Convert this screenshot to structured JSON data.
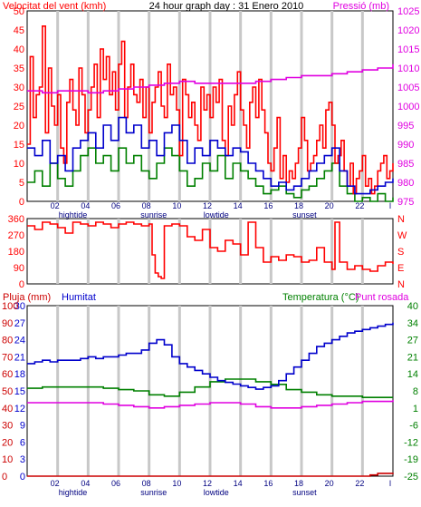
{
  "colors": {
    "red": "#ff0000",
    "dark_red": "#cc0000",
    "blue": "#0000cc",
    "green": "#008000",
    "magenta": "#e000e0",
    "grid": "#c8c8c8",
    "tick_text": "#000080"
  },
  "x_axis": {
    "hour_labels": [
      "02",
      "04",
      "06",
      "08",
      "10",
      "12",
      "14",
      "16",
      "18",
      "20",
      "22",
      "l"
    ],
    "events": [
      {
        "label": "hightide",
        "hour": 3.0
      },
      {
        "label": "sunrise",
        "hour": 8.3
      },
      {
        "label": "lowtide",
        "hour": 12.4
      },
      {
        "label": "sunset",
        "hour": 18.2
      },
      {
        "label": "hightide",
        "hour": 3.0
      },
      {
        "label": "sunrise",
        "hour": 8.3
      },
      {
        "label": "lowtide",
        "hour": 12.4
      },
      {
        "label": "sunset",
        "hour": 18.2
      }
    ],
    "xlim": [
      0,
      24
    ]
  },
  "chart_data": [
    {
      "type": "line",
      "title": "24 hour graph day : 31 Enero 2010",
      "left_axis": {
        "label": "Velocitat del vent (kmh)",
        "ticks": [
          "0",
          "5",
          "10",
          "15",
          "20",
          "25",
          "30",
          "35",
          "40",
          "45",
          "50"
        ],
        "ylim": [
          0,
          50
        ]
      },
      "right_axis": {
        "label": "Pressió (mb)",
        "ticks": [
          "975",
          "980",
          "985",
          "990",
          "995",
          "1000",
          "1005",
          "1010",
          "1015",
          "1020",
          "1025"
        ],
        "ylim": [
          975,
          1025
        ]
      },
      "series": [
        {
          "name": "gust",
          "axis": "left",
          "color": "red",
          "x": [
            0,
            0.2,
            0.4,
            0.6,
            0.8,
            1,
            1.2,
            1.4,
            1.6,
            1.8,
            2,
            2.2,
            2.4,
            2.6,
            2.8,
            3,
            3.2,
            3.4,
            3.6,
            3.8,
            4,
            4.2,
            4.4,
            4.6,
            4.8,
            5,
            5.2,
            5.4,
            5.6,
            5.8,
            6,
            6.2,
            6.4,
            6.6,
            6.8,
            7,
            7.2,
            7.4,
            7.6,
            7.8,
            8,
            8.2,
            8.4,
            8.6,
            8.8,
            9,
            9.2,
            9.4,
            9.6,
            9.8,
            10,
            10.2,
            10.4,
            10.6,
            10.8,
            11,
            11.2,
            11.4,
            11.6,
            11.8,
            12,
            12.2,
            12.4,
            12.6,
            12.8,
            13,
            13.2,
            13.4,
            13.6,
            13.8,
            14,
            14.2,
            14.4,
            14.6,
            14.8,
            15,
            15.2,
            15.4,
            15.6,
            15.8,
            16,
            16.2,
            16.4,
            16.6,
            16.8,
            17,
            17.2,
            17.4,
            17.6,
            17.8,
            18,
            18.2,
            18.4,
            18.6,
            18.8,
            19,
            19.2,
            19.4,
            19.6,
            19.8,
            20,
            20.2,
            20.4,
            20.6,
            20.8,
            21,
            21.2,
            21.4,
            21.6,
            21.8,
            22,
            22.2,
            22.4,
            22.6,
            22.8,
            23,
            23.2,
            23.4,
            23.6,
            23.8,
            24
          ],
          "y": [
            15,
            38,
            22,
            28,
            30,
            46,
            18,
            35,
            25,
            20,
            28,
            14,
            10,
            26,
            32,
            24,
            20,
            35,
            28,
            18,
            24,
            30,
            36,
            22,
            40,
            32,
            38,
            28,
            34,
            24,
            36,
            42,
            22,
            30,
            36,
            28,
            26,
            32,
            22,
            30,
            18,
            26,
            30,
            34,
            25,
            22,
            36,
            28,
            30,
            24,
            12,
            32,
            28,
            22,
            26,
            20,
            16,
            30,
            24,
            28,
            22,
            30,
            26,
            32,
            16,
            12,
            25,
            20,
            28,
            34,
            24,
            20,
            14,
            26,
            30,
            22,
            32,
            24,
            18,
            10,
            8,
            14,
            22,
            6,
            12,
            5,
            8,
            6,
            10,
            14,
            22,
            16,
            8,
            10,
            12,
            16,
            20,
            14,
            24,
            26,
            20,
            10,
            12,
            16,
            8,
            4,
            10,
            2,
            6,
            8,
            12,
            4,
            6,
            2,
            4,
            8,
            10,
            12,
            6,
            8,
            10
          ]
        },
        {
          "name": "average",
          "axis": "left",
          "color": "blue",
          "x": [
            0,
            0.5,
            1,
            1.5,
            2,
            2.5,
            3,
            3.5,
            4,
            4.5,
            5,
            5.5,
            6,
            6.5,
            7,
            7.5,
            8,
            8.5,
            9,
            9.5,
            10,
            10.5,
            11,
            11.5,
            12,
            12.5,
            13,
            13.5,
            14,
            14.5,
            15,
            15.5,
            16,
            16.5,
            17,
            17.5,
            18,
            18.5,
            19,
            19.5,
            20,
            20.5,
            21,
            21.5,
            22,
            22.5,
            23,
            23.5,
            24
          ],
          "y": [
            14,
            12,
            16,
            10,
            12,
            8,
            14,
            16,
            18,
            14,
            20,
            16,
            22,
            18,
            20,
            14,
            16,
            12,
            18,
            20,
            16,
            10,
            14,
            12,
            16,
            14,
            12,
            14,
            13,
            10,
            8,
            6,
            4,
            5,
            3,
            4,
            6,
            8,
            10,
            12,
            14,
            8,
            4,
            2,
            2,
            3,
            4,
            5,
            6
          ]
        },
        {
          "name": "wind",
          "axis": "left",
          "color": "green",
          "x": [
            0,
            0.5,
            1,
            1.5,
            2,
            2.5,
            3,
            3.5,
            4,
            4.5,
            5,
            5.5,
            6,
            6.5,
            7,
            7.5,
            8,
            8.5,
            9,
            9.5,
            10,
            10.5,
            11,
            11.5,
            12,
            12.5,
            13,
            13.5,
            14,
            14.5,
            15,
            15.5,
            16,
            16.5,
            17,
            17.5,
            18,
            18.5,
            19,
            19.5,
            20,
            20.5,
            21,
            21.5,
            22,
            22.5,
            23,
            23.5,
            24
          ],
          "y": [
            5,
            8,
            4,
            10,
            6,
            4,
            8,
            12,
            14,
            10,
            12,
            8,
            14,
            10,
            12,
            8,
            6,
            10,
            14,
            12,
            8,
            4,
            6,
            10,
            8,
            12,
            6,
            10,
            8,
            6,
            4,
            2,
            3,
            4,
            2,
            1,
            3,
            4,
            6,
            8,
            10,
            4,
            2,
            0,
            1,
            0,
            2,
            0,
            1
          ]
        },
        {
          "name": "pressure",
          "axis": "right",
          "color": "magenta",
          "x": [
            0,
            1,
            2,
            3,
            4,
            5,
            6,
            7,
            8,
            9,
            10,
            11,
            12,
            13,
            14,
            15,
            16,
            17,
            18,
            19,
            20,
            21,
            22,
            23,
            24
          ],
          "y": [
            1004,
            1003.5,
            1004,
            1004,
            1003.5,
            1004,
            1004.5,
            1005,
            1005.5,
            1006,
            1006.5,
            1006,
            1006,
            1006,
            1006,
            1006.5,
            1007,
            1007.5,
            1008,
            1008,
            1008.5,
            1009,
            1009.5,
            1010,
            1011
          ]
        }
      ]
    },
    {
      "type": "line",
      "left_axis": {
        "ticks": [
          "0",
          "90",
          "180",
          "270",
          "360"
        ],
        "ylim": [
          0,
          360
        ]
      },
      "right_axis": {
        "ticks": [
          "N",
          "W",
          "S",
          "E",
          "N"
        ]
      },
      "series": [
        {
          "name": "direction",
          "axis": "left",
          "color": "red",
          "x": [
            0,
            0.5,
            1,
            1.5,
            2,
            2.5,
            3,
            3.5,
            4,
            4.5,
            5,
            5.5,
            6,
            6.5,
            7,
            7.5,
            8,
            8.2,
            8.4,
            8.6,
            8.8,
            9,
            9.5,
            10,
            10.5,
            11,
            11.5,
            12,
            12.5,
            13,
            13.5,
            14,
            14.5,
            15,
            15.5,
            16,
            16.5,
            17,
            17.5,
            18,
            18.5,
            19,
            19.5,
            20,
            20.2,
            20.5,
            21,
            21.5,
            22,
            22.5,
            23,
            23.5,
            24
          ],
          "y": [
            320,
            300,
            340,
            330,
            310,
            280,
            340,
            330,
            320,
            340,
            330,
            310,
            330,
            340,
            330,
            320,
            330,
            160,
            60,
            40,
            30,
            320,
            330,
            320,
            260,
            240,
            300,
            200,
            180,
            240,
            220,
            160,
            340,
            200,
            120,
            150,
            130,
            160,
            150,
            120,
            130,
            200,
            120,
            80,
            340,
            120,
            80,
            100,
            80,
            70,
            100,
            120,
            110
          ]
        }
      ]
    },
    {
      "type": "line",
      "labels": {
        "rain": "Pluja (mm)",
        "humidity": "Humitat",
        "temperature": "Temperatura (°C)",
        "dewpoint": "Punt rosada"
      },
      "rain_axis": {
        "ticks": [
          "0",
          "3",
          "6",
          "9",
          "12",
          "15",
          "18",
          "21",
          "24",
          "27",
          "30"
        ],
        "ylim": [
          0,
          30
        ]
      },
      "humidity_axis": {
        "ticks": [
          "0",
          "10",
          "20",
          "30",
          "40",
          "50",
          "60",
          "70",
          "80",
          "90",
          "100"
        ],
        "ylim": [
          0,
          100
        ]
      },
      "temp_axis": {
        "ticks": [
          "-25",
          "-19",
          "-12",
          "-6",
          "1",
          "8",
          "14",
          "21",
          "27",
          "34",
          "40"
        ],
        "ylim": [
          -25,
          40
        ]
      },
      "series": [
        {
          "name": "humidity",
          "axis": "humidity",
          "color": "blue",
          "x": [
            0,
            0.5,
            1,
            1.5,
            2,
            2.5,
            3,
            3.5,
            4,
            4.5,
            5,
            5.5,
            6,
            6.5,
            7,
            7.5,
            8,
            8.5,
            9,
            9.5,
            10,
            10.5,
            11,
            11.5,
            12,
            12.5,
            13,
            13.5,
            14,
            14.5,
            15,
            15.5,
            16,
            16.5,
            17,
            17.5,
            18,
            18.5,
            19,
            19.5,
            20,
            20.5,
            21,
            21.5,
            22,
            22.5,
            23,
            23.5,
            24
          ],
          "y": [
            66,
            67,
            68,
            67,
            68,
            68,
            68,
            69,
            70,
            69,
            70,
            70,
            71,
            72,
            72,
            74,
            78,
            80,
            77,
            70,
            66,
            64,
            62,
            60,
            58,
            56,
            55,
            54,
            53,
            52,
            51,
            52,
            53,
            56,
            60,
            64,
            68,
            72,
            76,
            78,
            80,
            82,
            84,
            85,
            86,
            87,
            88,
            89,
            90
          ]
        },
        {
          "name": "temperature",
          "axis": "temp",
          "color": "green",
          "x": [
            0,
            1,
            2,
            3,
            4,
            5,
            6,
            7,
            8,
            9,
            10,
            11,
            12,
            13,
            14,
            15,
            16,
            17,
            18,
            19,
            20,
            21,
            22,
            23,
            24
          ],
          "y": [
            8.5,
            9,
            9,
            9,
            9,
            8.5,
            8,
            7.5,
            6,
            5.5,
            7,
            9,
            11,
            12,
            12,
            11,
            10,
            8,
            7,
            6,
            5.5,
            5.5,
            5,
            5,
            5
          ]
        },
        {
          "name": "dewpoint",
          "axis": "temp",
          "color": "magenta",
          "x": [
            0,
            1,
            2,
            3,
            4,
            5,
            6,
            7,
            8,
            9,
            10,
            11,
            12,
            13,
            14,
            15,
            16,
            17,
            18,
            19,
            20,
            21,
            22,
            23,
            24
          ],
          "y": [
            3,
            3,
            3,
            3,
            3,
            2.5,
            2,
            1.5,
            1,
            1.5,
            2,
            2.5,
            3,
            3,
            2.5,
            1.5,
            1,
            1,
            1.5,
            2,
            2.5,
            3,
            3.5,
            3.5,
            4
          ]
        },
        {
          "name": "rain",
          "axis": "rain",
          "color": "dark_red",
          "x": [
            0,
            20,
            21,
            22,
            22.5,
            23,
            24
          ],
          "y": [
            0,
            0,
            0,
            0,
            0.2,
            0.5,
            0.6
          ]
        }
      ]
    }
  ]
}
